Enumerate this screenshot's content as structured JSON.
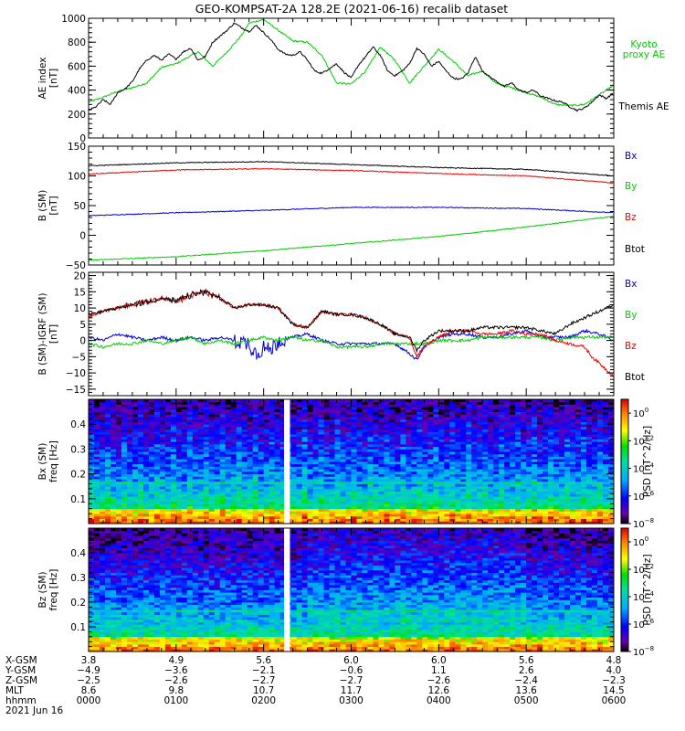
{
  "title": "GEO-KOMPSAT-2A 128.2E (2021-06-16) recalib dataset",
  "colors": {
    "black": "#000000",
    "red": "#ee0000",
    "green": "#00cc00",
    "blue": "#0000cc"
  },
  "chart_data": [
    {
      "type": "line",
      "id": "ae",
      "ylabel_lines": [
        "AE index",
        "[nT]"
      ],
      "ylim": [
        0,
        1000
      ],
      "yticks": [
        0,
        200,
        400,
        600,
        800,
        1000
      ],
      "xlim": [
        0,
        360
      ],
      "grid": false,
      "legend_position": "right",
      "series": [
        {
          "name": "Kyoto proxy AE",
          "legend_lines": [
            "Kyoto",
            "proxy AE"
          ],
          "color": "green",
          "x": [
            0,
            10,
            20,
            30,
            40,
            50,
            60,
            66,
            75,
            85,
            95,
            105,
            110,
            120,
            130,
            140,
            150,
            160,
            170,
            180,
            190,
            200,
            210,
            220,
            230,
            240,
            250,
            260,
            270,
            280,
            290,
            300,
            310,
            320,
            330,
            340,
            350,
            360
          ],
          "y": [
            300,
            340,
            390,
            420,
            460,
            590,
            620,
            660,
            720,
            600,
            720,
            860,
            960,
            990,
            900,
            810,
            800,
            690,
            460,
            450,
            560,
            760,
            650,
            460,
            600,
            740,
            640,
            520,
            560,
            450,
            420,
            380,
            340,
            280,
            270,
            280,
            360,
            440
          ]
        },
        {
          "name": "Themis AE",
          "legend_lines": [
            "Themis AE"
          ],
          "color": "black",
          "x": [
            0,
            5,
            10,
            15,
            20,
            25,
            30,
            35,
            40,
            45,
            50,
            55,
            60,
            65,
            70,
            75,
            80,
            85,
            90,
            95,
            100,
            105,
            110,
            115,
            120,
            125,
            130,
            135,
            140,
            145,
            150,
            155,
            160,
            165,
            170,
            175,
            180,
            185,
            190,
            195,
            200,
            205,
            210,
            215,
            220,
            225,
            230,
            235,
            240,
            245,
            250,
            255,
            260,
            265,
            270,
            275,
            280,
            285,
            290,
            295,
            300,
            305,
            310,
            315,
            320,
            325,
            330,
            335,
            340,
            345,
            350,
            355,
            360
          ],
          "y": [
            230,
            260,
            320,
            280,
            380,
            410,
            470,
            580,
            650,
            690,
            650,
            700,
            660,
            720,
            750,
            650,
            680,
            800,
            850,
            900,
            960,
            920,
            890,
            940,
            880,
            820,
            740,
            700,
            690,
            720,
            650,
            560,
            540,
            580,
            620,
            550,
            500,
            610,
            680,
            760,
            690,
            560,
            520,
            560,
            620,
            750,
            700,
            600,
            640,
            560,
            500,
            490,
            540,
            680,
            560,
            510,
            470,
            430,
            460,
            400,
            380,
            400,
            350,
            330,
            310,
            300,
            260,
            230,
            250,
            300,
            360,
            330,
            380
          ]
        }
      ]
    },
    {
      "type": "line",
      "id": "b",
      "ylabel_lines": [
        "B (SM)",
        "[nT]"
      ],
      "ylim": [
        -50,
        150
      ],
      "yticks": [
        -50,
        0,
        50,
        100,
        150
      ],
      "xlim": [
        0,
        360
      ],
      "grid": false,
      "legend_position": "right",
      "series": [
        {
          "name": "Bx",
          "color": "blue",
          "x": [
            0,
            60,
            120,
            180,
            240,
            300,
            360
          ],
          "y": [
            33,
            38,
            42,
            47,
            47,
            45,
            38
          ]
        },
        {
          "name": "By",
          "color": "green",
          "x": [
            0,
            60,
            120,
            180,
            240,
            300,
            360
          ],
          "y": [
            -42,
            -36,
            -26,
            -14,
            -2,
            14,
            32
          ]
        },
        {
          "name": "Bz",
          "color": "red",
          "x": [
            0,
            60,
            120,
            180,
            240,
            300,
            360
          ],
          "y": [
            103,
            110,
            112,
            109,
            104,
            100,
            88
          ]
        },
        {
          "name": "Btot",
          "color": "black",
          "x": [
            0,
            60,
            120,
            180,
            240,
            300,
            360
          ],
          "y": [
            117,
            122,
            124,
            119,
            114,
            111,
            100
          ]
        }
      ]
    },
    {
      "type": "line",
      "id": "db",
      "ylabel_lines": [
        "B (SM)-IGRF (SM)",
        "[nT]"
      ],
      "ylim": [
        -17,
        21
      ],
      "yticks": [
        -15,
        -10,
        -5,
        0,
        5,
        10,
        15,
        20
      ],
      "xlim": [
        0,
        360
      ],
      "grid": false,
      "legend_position": "right",
      "series": [
        {
          "name": "Bx",
          "color": "blue",
          "x": [
            0,
            10,
            20,
            30,
            40,
            50,
            60,
            70,
            80,
            90,
            100,
            110,
            115,
            120,
            125,
            130,
            140,
            150,
            160,
            170,
            180,
            190,
            200,
            210,
            220,
            225,
            230,
            240,
            250,
            260,
            270,
            280,
            290,
            300,
            310,
            320,
            330,
            340,
            350,
            360
          ],
          "y": [
            1,
            0,
            2,
            1,
            0,
            1,
            0,
            1,
            0,
            1,
            0,
            -1,
            -4,
            -2,
            -3,
            0,
            1,
            2,
            0,
            -1,
            -1,
            -1,
            -1,
            -1,
            -4,
            -6,
            -2,
            1,
            2,
            2,
            1,
            1,
            2,
            3,
            1,
            1,
            1,
            3,
            2,
            0
          ]
        },
        {
          "name": "By",
          "color": "green",
          "x": [
            0,
            10,
            20,
            30,
            40,
            50,
            60,
            70,
            80,
            90,
            100,
            110,
            120,
            130,
            140,
            150,
            160,
            170,
            180,
            190,
            200,
            210,
            220,
            230,
            240,
            250,
            260,
            270,
            280,
            290,
            300,
            310,
            320,
            330,
            340,
            350,
            360
          ],
          "y": [
            -1,
            -2,
            -1,
            -1,
            0,
            -1,
            0,
            1,
            -1,
            0,
            -1,
            0,
            1,
            0,
            1,
            0,
            0,
            -2,
            -2,
            -2,
            -1,
            -1,
            -1,
            -1,
            0,
            0,
            0,
            1,
            1,
            1,
            1,
            1,
            0,
            1,
            1,
            1,
            1
          ]
        },
        {
          "name": "Bz",
          "color": "red",
          "x": [
            0,
            10,
            20,
            30,
            40,
            50,
            60,
            70,
            80,
            90,
            100,
            110,
            120,
            130,
            140,
            150,
            160,
            170,
            180,
            190,
            200,
            210,
            220,
            225,
            230,
            240,
            250,
            260,
            270,
            280,
            290,
            300,
            310,
            320,
            330,
            340,
            345,
            350,
            355,
            360
          ],
          "y": [
            7,
            9,
            10,
            11,
            12,
            13,
            12,
            14,
            15,
            13,
            10,
            11,
            11,
            10,
            5,
            4,
            9,
            8,
            8,
            7,
            5,
            2,
            1,
            -5,
            -2,
            1,
            3,
            3,
            2,
            2,
            3,
            2,
            2,
            0,
            -1,
            -2,
            -5,
            -7,
            -9,
            -11
          ]
        },
        {
          "name": "Btot",
          "color": "black",
          "x": [
            0,
            10,
            20,
            30,
            40,
            50,
            60,
            70,
            80,
            90,
            100,
            110,
            120,
            130,
            140,
            150,
            160,
            170,
            180,
            190,
            200,
            210,
            220,
            225,
            230,
            240,
            250,
            260,
            270,
            280,
            290,
            300,
            310,
            320,
            330,
            340,
            350,
            360
          ],
          "y": [
            8,
            9,
            10,
            11,
            12,
            13,
            12,
            14,
            15,
            13,
            10,
            11,
            11,
            10,
            5,
            4,
            9,
            8,
            8,
            7,
            5,
            2,
            1,
            -3,
            0,
            3,
            3,
            3,
            4,
            4,
            4,
            4,
            3,
            2,
            5,
            7,
            9,
            11
          ]
        }
      ]
    },
    {
      "type": "heatmap",
      "id": "bx-spec",
      "ylabel_lines": [
        "Bx (SM)",
        "freq [Hz]"
      ],
      "ylim": [
        0,
        0.5
      ],
      "yticks": [
        0.1,
        0.2,
        0.3,
        0.4
      ],
      "xlim": [
        0,
        360
      ],
      "data_gap": [
        134,
        138
      ],
      "colorbar": {
        "label": "PSD [nT^2/Hz]",
        "scale": "log",
        "range_exp": [
          -8,
          1
        ],
        "tick_exps": [
          0,
          -2,
          -4,
          -6,
          -8
        ]
      }
    },
    {
      "type": "heatmap",
      "id": "bz-spec",
      "ylabel_lines": [
        "Bz (SM)",
        "freq [Hz]"
      ],
      "ylim": [
        0,
        0.5
      ],
      "yticks": [
        0.1,
        0.2,
        0.3,
        0.4
      ],
      "xlim": [
        0,
        360
      ],
      "data_gap": [
        134,
        138
      ],
      "colorbar": {
        "label": "PSD [nT^2/Hz]",
        "scale": "log",
        "range_exp": [
          -8,
          1
        ],
        "tick_exps": [
          0,
          -2,
          -4,
          -6,
          -8
        ]
      }
    }
  ],
  "ephemeris": {
    "labels": [
      "X-GSM",
      "Y-GSM",
      "Z-GSM",
      "MLT",
      "hhmm",
      "2021 Jun 16"
    ],
    "tick_x": [
      0,
      60,
      120,
      180,
      240,
      300,
      360
    ],
    "rows": [
      [
        "3.8",
        "4.9",
        "5.6",
        "6.0",
        "6.0",
        "5.6",
        "4.8"
      ],
      [
        "-4.9",
        "-3.6",
        "-2.1",
        "-0.6",
        "1.1",
        "2.6",
        "4.0"
      ],
      [
        "-2.5",
        "-2.6",
        "-2.7",
        "-2.7",
        "-2.6",
        "-2.4",
        "-2.3"
      ],
      [
        "8.6",
        "9.8",
        "10.7",
        "11.7",
        "12.6",
        "13.6",
        "14.5"
      ],
      [
        "0000",
        "0100",
        "0200",
        "0300",
        "0400",
        "0500",
        "0600"
      ]
    ]
  }
}
